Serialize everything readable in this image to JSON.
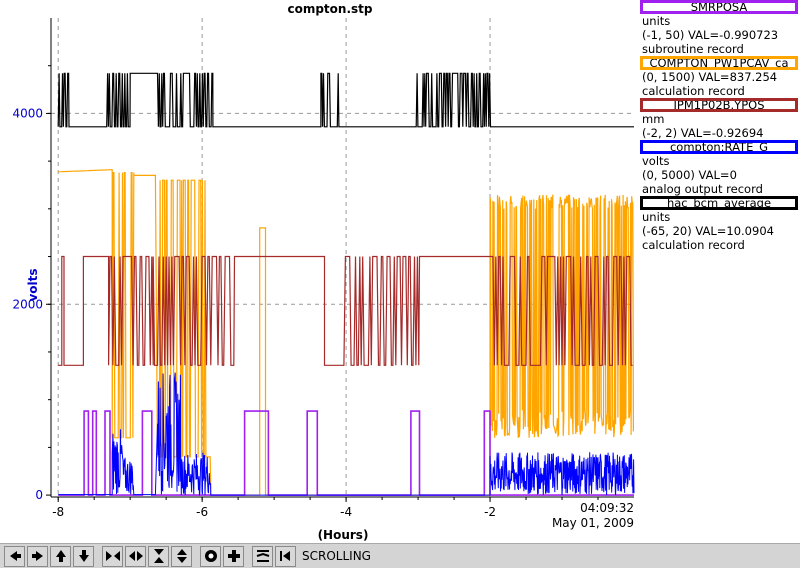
{
  "chart_data": {
    "type": "line",
    "title": "compton.stp",
    "xlabel": "(Hours)",
    "ylabel": "volts",
    "xlim": [
      -8.1,
      0
    ],
    "ylim": [
      -20,
      5000
    ],
    "x_ticks": [
      -8,
      -6,
      -4,
      -2
    ],
    "y_ticks": [
      0,
      2000,
      4000
    ],
    "grid": true,
    "end_time": "04:09:32",
    "end_date": "May 01, 2009",
    "series": [
      {
        "name": "SMRPOSA",
        "color": "#a020f0",
        "segments": [
          [
            -8.0,
            0
          ],
          [
            -7.64,
            0
          ],
          [
            -7.64,
            880
          ],
          [
            -7.58,
            880
          ],
          [
            -7.58,
            0
          ],
          [
            -7.52,
            0
          ],
          [
            -7.52,
            880
          ],
          [
            -7.47,
            880
          ],
          [
            -7.47,
            0
          ],
          [
            -7.35,
            0
          ],
          [
            -7.35,
            880
          ],
          [
            -7.28,
            880
          ],
          [
            -7.28,
            0
          ],
          [
            -6.83,
            0
          ],
          [
            -6.83,
            880
          ],
          [
            -6.7,
            880
          ],
          [
            -6.7,
            0
          ],
          [
            -5.41,
            0
          ],
          [
            -5.41,
            880
          ],
          [
            -5.08,
            880
          ],
          [
            -5.08,
            0
          ],
          [
            -4.54,
            0
          ],
          [
            -4.54,
            880
          ],
          [
            -4.4,
            880
          ],
          [
            -4.4,
            0
          ],
          [
            -3.1,
            0
          ],
          [
            -3.1,
            880
          ],
          [
            -2.98,
            880
          ],
          [
            -2.98,
            0
          ],
          [
            -2.08,
            0
          ],
          [
            -2.08,
            880
          ],
          [
            -2.0,
            880
          ],
          [
            -2.0,
            0
          ],
          [
            0,
            0
          ]
        ]
      },
      {
        "name": "COMPTON_PW1PCAV_ca",
        "color": "#ffa500"
      },
      {
        "name": "IPM1P02B.YPOS",
        "color": "#a52a2a"
      },
      {
        "name": "compton:RATE_G",
        "color": "#0000ff"
      },
      {
        "name": "hac_bcm_average",
        "color": "#000000"
      }
    ]
  },
  "legend": [
    {
      "name": "SMRPOSA",
      "color": "#a020f0",
      "units": "units",
      "range": "(-1, 50)",
      "val": "VAL=-0.990723",
      "record": "subroutine record"
    },
    {
      "name": "COMPTON_PW1PCAV_ca",
      "color": "#ffa500",
      "units": "",
      "range": "(0, 1500)",
      "val": "VAL=837.254",
      "record": "calculation record"
    },
    {
      "name": "IPM1P02B.YPOS",
      "color": "#a52a2a",
      "units": "mm",
      "range": "(-2, 2)",
      "val": "VAL=-0.92694",
      "record": ""
    },
    {
      "name": "compton:RATE_G",
      "color": "#0000ff",
      "units": "volts",
      "range": "(0, 5000)",
      "val": "VAL=0",
      "record": "analog output record"
    },
    {
      "name": "hac_bcm_average",
      "color": "#000000",
      "units": "units",
      "range": "(-65, 20)",
      "val": "VAL=10.0904",
      "record": "calculation record"
    }
  ],
  "toolbar": {
    "buttons": [
      "left-arrow-icon",
      "right-arrow-icon",
      "up-arrow-icon",
      "down-arrow-icon",
      "zoom-in-x-icon",
      "zoom-out-x-icon",
      "zoom-in-y-icon",
      "zoom-out-y-icon",
      "autoscale-icon",
      "add-icon",
      "compress-icon",
      "left-end-icon"
    ],
    "status": "SCROLLING"
  }
}
